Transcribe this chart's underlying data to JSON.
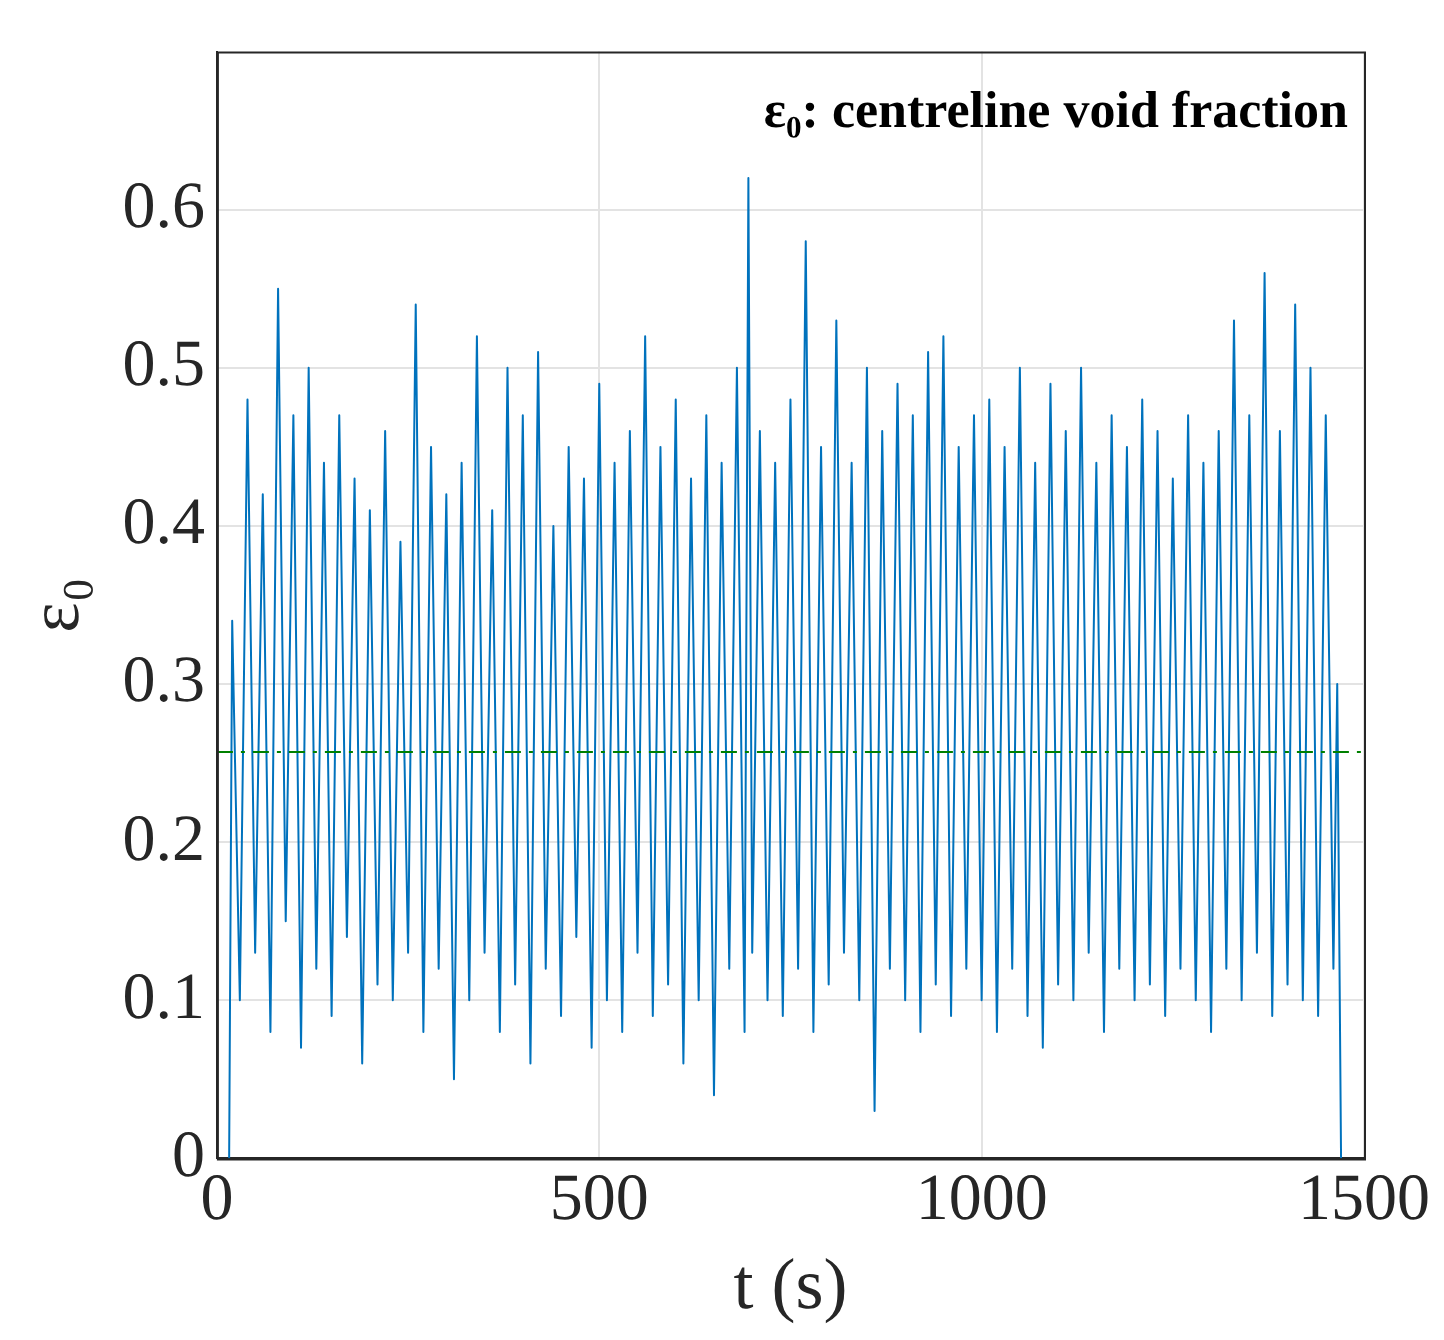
{
  "chart_data": {
    "type": "line",
    "xlabel": "t (s)",
    "ylabel": "ε₀",
    "annotations": [
      "ε₀: centreline void fraction"
    ],
    "xlim": [
      0,
      1500
    ],
    "xticks": [
      0,
      500,
      1000,
      1500
    ],
    "ylim": [
      0,
      0.7
    ],
    "yticks": [
      0,
      0.1,
      0.2,
      0.3,
      0.4,
      0.5,
      0.6
    ],
    "grid": true,
    "marker": "none",
    "line_style": "solid",
    "ref_lines": [
      {
        "axis": "y",
        "value": 0.257,
        "color": "#008000",
        "line_style": "dashed"
      }
    ],
    "series": [
      {
        "color": "#0072bd",
        "x": [
          16,
          20,
          30,
          40,
          50,
          60,
          70,
          80,
          90,
          100,
          110,
          120,
          130,
          140,
          150,
          160,
          170,
          180,
          190,
          200,
          210,
          220,
          230,
          240,
          250,
          260,
          270,
          280,
          290,
          300,
          310,
          320,
          330,
          340,
          350,
          360,
          370,
          380,
          390,
          400,
          410,
          420,
          430,
          440,
          450,
          460,
          470,
          480,
          490,
          500,
          510,
          520,
          530,
          540,
          550,
          560,
          570,
          580,
          590,
          600,
          610,
          620,
          630,
          640,
          650,
          660,
          670,
          680,
          690,
          695,
          700,
          710,
          720,
          730,
          740,
          750,
          760,
          770,
          780,
          790,
          800,
          810,
          820,
          830,
          840,
          850,
          860,
          870,
          880,
          890,
          900,
          910,
          920,
          930,
          940,
          950,
          960,
          970,
          980,
          990,
          1000,
          1010,
          1020,
          1030,
          1040,
          1050,
          1060,
          1070,
          1080,
          1090,
          1100,
          1110,
          1120,
          1130,
          1140,
          1150,
          1160,
          1170,
          1180,
          1190,
          1200,
          1210,
          1220,
          1230,
          1240,
          1250,
          1260,
          1270,
          1280,
          1290,
          1300,
          1310,
          1320,
          1330,
          1340,
          1350,
          1360,
          1370,
          1380,
          1390,
          1400,
          1410,
          1420,
          1430,
          1440,
          1450,
          1460,
          1465,
          1470
        ],
        "values": [
          0,
          0.34,
          0.1,
          0.48,
          0.13,
          0.42,
          0.08,
          0.55,
          0.15,
          0.47,
          0.07,
          0.5,
          0.12,
          0.44,
          0.09,
          0.47,
          0.14,
          0.43,
          0.06,
          0.41,
          0.11,
          0.46,
          0.1,
          0.39,
          0.13,
          0.54,
          0.08,
          0.45,
          0.12,
          0.42,
          0.05,
          0.44,
          0.1,
          0.52,
          0.13,
          0.41,
          0.08,
          0.5,
          0.11,
          0.47,
          0.06,
          0.51,
          0.12,
          0.4,
          0.09,
          0.45,
          0.14,
          0.43,
          0.07,
          0.49,
          0.1,
          0.44,
          0.08,
          0.46,
          0.13,
          0.52,
          0.09,
          0.45,
          0.11,
          0.48,
          0.06,
          0.43,
          0.1,
          0.47,
          0.04,
          0.44,
          0.12,
          0.5,
          0.08,
          0.62,
          0.13,
          0.46,
          0.1,
          0.44,
          0.09,
          0.48,
          0.12,
          0.58,
          0.08,
          0.45,
          0.11,
          0.53,
          0.13,
          0.44,
          0.1,
          0.5,
          0.03,
          0.46,
          0.12,
          0.49,
          0.1,
          0.47,
          0.08,
          0.51,
          0.11,
          0.52,
          0.09,
          0.45,
          0.12,
          0.47,
          0.1,
          0.48,
          0.08,
          0.45,
          0.12,
          0.5,
          0.09,
          0.44,
          0.07,
          0.49,
          0.11,
          0.46,
          0.1,
          0.5,
          0.13,
          0.44,
          0.08,
          0.47,
          0.12,
          0.45,
          0.1,
          0.48,
          0.11,
          0.46,
          0.09,
          0.43,
          0.12,
          0.47,
          0.1,
          0.44,
          0.08,
          0.46,
          0.12,
          0.53,
          0.1,
          0.47,
          0.13,
          0.56,
          0.09,
          0.46,
          0.11,
          0.54,
          0.1,
          0.5,
          0.09,
          0.47,
          0.12,
          0.3,
          0
        ]
      }
    ]
  }
}
